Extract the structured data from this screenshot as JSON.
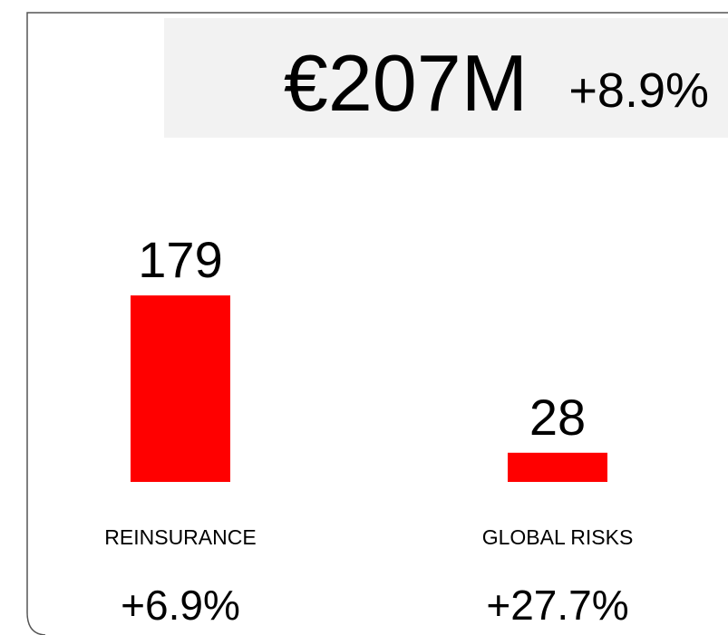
{
  "chart_data": {
    "type": "bar",
    "title": "€207M",
    "subtitle": "+8.9%",
    "categories": [
      "REINSURANCE",
      "GLOBAL RISKS"
    ],
    "values": [
      179,
      28
    ],
    "growth_labels": [
      "+6.9%",
      "+27.7%"
    ],
    "color": "#ff0000"
  }
}
